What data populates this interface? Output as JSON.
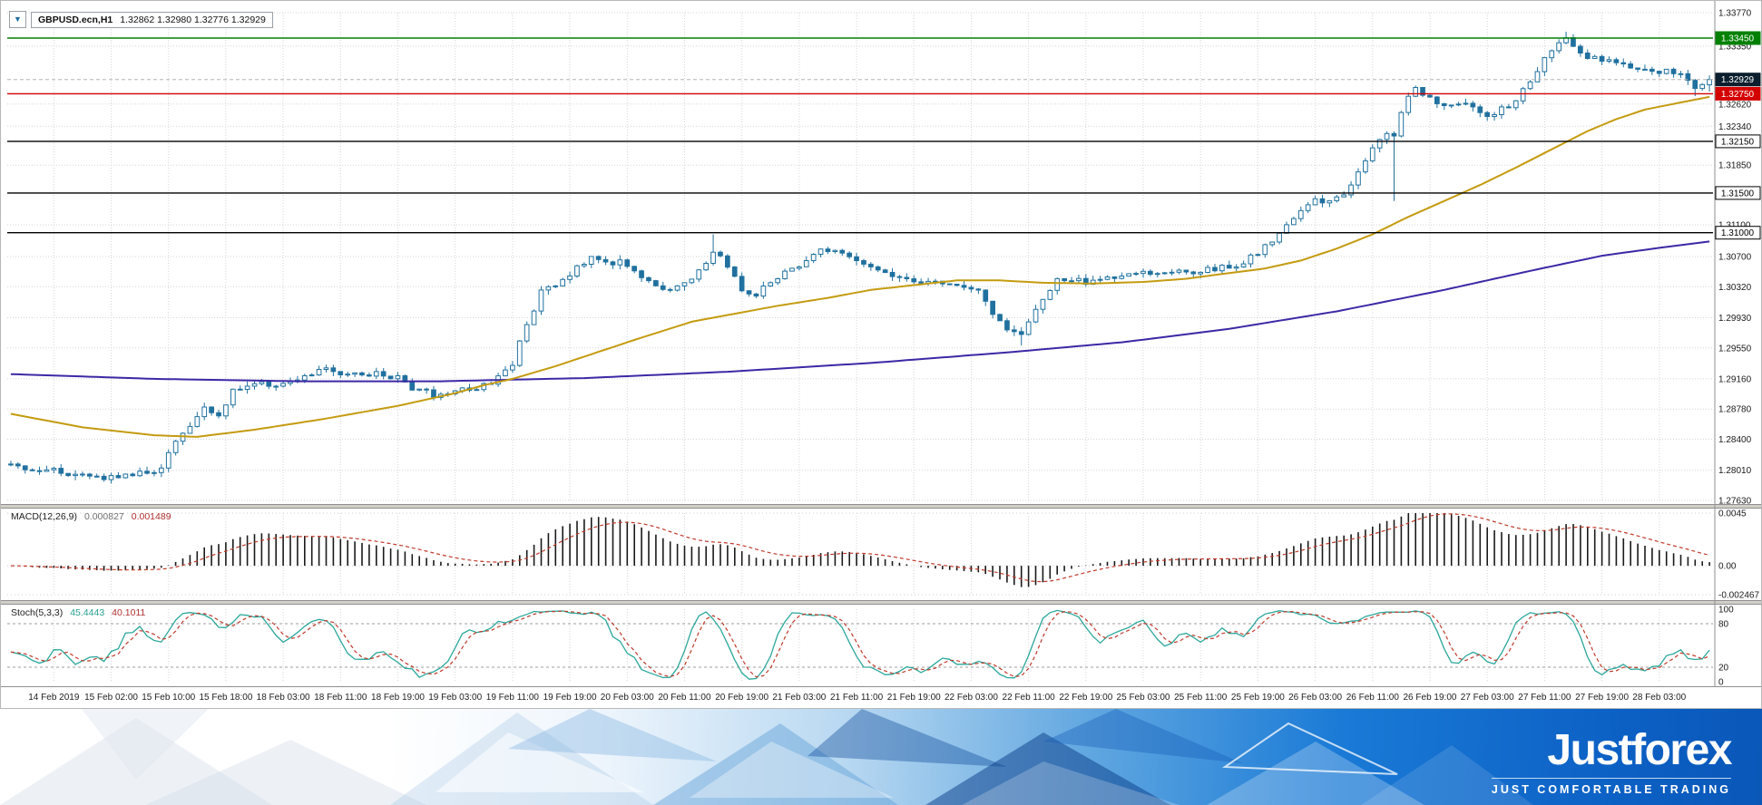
{
  "window": {
    "symbol_title": "GBPUSD.ecn,H1",
    "ohlc_text": "1.32862 1.32980 1.32776 1.32929",
    "dropdown_icon": "▼"
  },
  "chart_data": {
    "type": "candlestick",
    "symbol": "GBPUSD.ecn",
    "timeframe": "H1",
    "open": "1.32862",
    "high": "1.32980",
    "low": "1.32776",
    "close": "1.32929",
    "colors": {
      "candle": "#20719f",
      "bull_fill": "#ffffff",
      "bear_fill": "#20719f",
      "ma_fast": "#c49b10",
      "ma_slow": "#3d28a5",
      "grid": "#d6d6d6",
      "macd_bar": "#1a1a1a",
      "macd_signal": "#c03a2b",
      "stoch_main": "#2aa79b",
      "stoch_signal": "#c03a2b",
      "line_green": "#008000",
      "line_red": "#d40000",
      "line_black": "#000000",
      "price_box_bg": "#0b1f2e"
    },
    "y_axis": {
      "range": [
        1.2763,
        1.3377
      ],
      "ticks": [
        {
          "t": "1.33770",
          "v": 1.3377
        },
        {
          "t": "1.33350",
          "v": 1.3335
        },
        {
          "t": "1.32620",
          "v": 1.3262
        },
        {
          "t": "1.32340",
          "v": 1.3234
        },
        {
          "t": "1.31850",
          "v": 1.3185
        },
        {
          "t": "1.31100",
          "v": 1.311
        },
        {
          "t": "1.30700",
          "v": 1.307
        },
        {
          "t": "1.30320",
          "v": 1.3032
        },
        {
          "t": "1.29930",
          "v": 1.2993
        },
        {
          "t": "1.29550",
          "v": 1.2955
        },
        {
          "t": "1.29160",
          "v": 1.2916
        },
        {
          "t": "1.28780",
          "v": 1.2878
        },
        {
          "t": "1.28400",
          "v": 1.284
        },
        {
          "t": "1.28010",
          "v": 1.2801
        },
        {
          "t": "1.27630",
          "v": 1.2763
        }
      ]
    },
    "x_labels": [
      "14 Feb 2019",
      "15 Feb 02:00",
      "15 Feb 10:00",
      "15 Feb 18:00",
      "18 Feb 03:00",
      "18 Feb 11:00",
      "18 Feb 19:00",
      "19 Feb 03:00",
      "19 Feb 11:00",
      "19 Feb 19:00",
      "20 Feb 03:00",
      "20 Feb 11:00",
      "20 Feb 19:00",
      "21 Feb 03:00",
      "21 Feb 11:00",
      "21 Feb 19:00",
      "22 Feb 03:00",
      "22 Feb 11:00",
      "22 Feb 19:00",
      "25 Feb 03:00",
      "25 Feb 11:00",
      "25 Feb 19:00",
      "26 Feb 03:00",
      "26 Feb 11:00",
      "26 Feb 19:00",
      "27 Feb 03:00",
      "27 Feb 11:00",
      "27 Feb 19:00",
      "28 Feb 03:00"
    ],
    "bars_per_gridline": 8,
    "first_gridline_index": 6,
    "candles_total": 238,
    "candle_noise": 0.0007,
    "wick_noise": 0.0006,
    "price_path": [
      [
        0,
        1.2806
      ],
      [
        7,
        1.2799
      ],
      [
        12,
        1.2792
      ],
      [
        17,
        1.2795
      ],
      [
        21,
        1.2802
      ],
      [
        23,
        1.284
      ],
      [
        27,
        1.2878
      ],
      [
        29,
        1.2868
      ],
      [
        31,
        1.29
      ],
      [
        34,
        1.2912
      ],
      [
        37,
        1.2905
      ],
      [
        40,
        1.2915
      ],
      [
        44,
        1.293
      ],
      [
        47,
        1.292
      ],
      [
        51,
        1.2922
      ],
      [
        54,
        1.2918
      ],
      [
        56,
        1.2905
      ],
      [
        59,
        1.2896
      ],
      [
        62,
        1.29
      ],
      [
        65,
        1.2906
      ],
      [
        67,
        1.2912
      ],
      [
        70,
        1.293
      ],
      [
        71,
        1.2965
      ],
      [
        73,
        1.3
      ],
      [
        74,
        1.3025
      ],
      [
        77,
        1.304
      ],
      [
        79,
        1.3055
      ],
      [
        81,
        1.3068
      ],
      [
        83,
        1.306
      ],
      [
        85,
        1.3065
      ],
      [
        88,
        1.3045
      ],
      [
        90,
        1.303
      ],
      [
        92,
        1.3028
      ],
      [
        95,
        1.304
      ],
      [
        97,
        1.306
      ],
      [
        98,
        1.3075
      ],
      [
        100,
        1.306
      ],
      [
        102,
        1.303
      ],
      [
        104,
        1.3022
      ],
      [
        106,
        1.304
      ],
      [
        108,
        1.305
      ],
      [
        110,
        1.306
      ],
      [
        112,
        1.3075
      ],
      [
        115,
        1.308
      ],
      [
        117,
        1.307
      ],
      [
        119,
        1.306
      ],
      [
        121,
        1.3055
      ],
      [
        123,
        1.3048
      ],
      [
        126,
        1.304
      ],
      [
        128,
        1.3038
      ],
      [
        130,
        1.3035
      ],
      [
        133,
        1.303
      ],
      [
        135,
        1.3025
      ],
      [
        137,
        1.3
      ],
      [
        139,
        1.298
      ],
      [
        141,
        1.2972
      ],
      [
        142,
        1.299
      ],
      [
        144,
        1.3015
      ],
      [
        146,
        1.304
      ],
      [
        148,
        1.3042
      ],
      [
        150,
        1.3038
      ],
      [
        152,
        1.3042
      ],
      [
        155,
        1.3045
      ],
      [
        157,
        1.3048
      ],
      [
        159,
        1.305
      ],
      [
        162,
        1.3052
      ],
      [
        164,
        1.3048
      ],
      [
        166,
        1.3052
      ],
      [
        168,
        1.3055
      ],
      [
        170,
        1.3058
      ],
      [
        172,
        1.3062
      ],
      [
        174,
        1.3075
      ],
      [
        176,
        1.309
      ],
      [
        178,
        1.311
      ],
      [
        180,
        1.3128
      ],
      [
        182,
        1.314
      ],
      [
        184,
        1.3138
      ],
      [
        186,
        1.315
      ],
      [
        188,
        1.3175
      ],
      [
        190,
        1.3205
      ],
      [
        192,
        1.3228
      ],
      [
        193,
        1.3222
      ],
      [
        194,
        1.3252
      ],
      [
        195,
        1.327
      ],
      [
        196,
        1.328
      ],
      [
        198,
        1.3268
      ],
      [
        200,
        1.3258
      ],
      [
        202,
        1.3263
      ],
      [
        204,
        1.3257
      ],
      [
        206,
        1.3249
      ],
      [
        208,
        1.3255
      ],
      [
        210,
        1.3266
      ],
      [
        212,
        1.3292
      ],
      [
        214,
        1.3318
      ],
      [
        216,
        1.3338
      ],
      [
        217,
        1.3345
      ],
      [
        218,
        1.3332
      ],
      [
        220,
        1.332
      ],
      [
        222,
        1.3318
      ],
      [
        224,
        1.3312
      ],
      [
        226,
        1.3308
      ],
      [
        228,
        1.3305
      ],
      [
        231,
        1.3303
      ],
      [
        233,
        1.3297
      ],
      [
        235,
        1.3282
      ],
      [
        236,
        1.3286
      ],
      [
        237,
        1.32929
      ]
    ],
    "spikes": [
      {
        "i": 98,
        "high": 1.3098
      },
      {
        "i": 141,
        "low": 1.2958
      },
      {
        "i": 193,
        "low": 1.314
      },
      {
        "i": 217,
        "high": 1.3353
      },
      {
        "i": 235,
        "low": 1.3272
      }
    ],
    "last_candle": {
      "o": 1.32862,
      "h": 1.3298,
      "l": 1.32776,
      "c": 1.32929
    },
    "hlines": [
      {
        "v": 1.3345,
        "label": "1.33450",
        "color": "#008000",
        "bg": "#008000",
        "text": "#ffffff"
      },
      {
        "v": 1.3275,
        "label": "1.32750",
        "color": "#d40000",
        "bg": "#d40000",
        "text": "#ffffff"
      },
      {
        "v": 1.3215,
        "label": "1.32150",
        "color": "#000000",
        "bg": "#ffffff",
        "text": "#000000"
      },
      {
        "v": 1.315,
        "label": "1.31500",
        "color": "#000000",
        "bg": "#ffffff",
        "text": "#000000"
      },
      {
        "v": 1.31,
        "label": "1.31000",
        "color": "#000000",
        "bg": "#ffffff",
        "text": "#000000"
      }
    ],
    "current_price": {
      "v": 1.32929,
      "label": "1.32929"
    },
    "ma_fast": [
      [
        0,
        1.2872
      ],
      [
        10,
        1.2855
      ],
      [
        20,
        1.2845
      ],
      [
        26,
        1.2843
      ],
      [
        34,
        1.2852
      ],
      [
        44,
        1.2866
      ],
      [
        54,
        1.2882
      ],
      [
        62,
        1.2898
      ],
      [
        66,
        1.2908
      ],
      [
        70,
        1.2916
      ],
      [
        76,
        1.2932
      ],
      [
        82,
        1.295
      ],
      [
        88,
        1.2968
      ],
      [
        95,
        1.2988
      ],
      [
        101,
        1.2998
      ],
      [
        107,
        1.3008
      ],
      [
        114,
        1.3018
      ],
      [
        120,
        1.3028
      ],
      [
        126,
        1.3034
      ],
      [
        132,
        1.304
      ],
      [
        138,
        1.304
      ],
      [
        144,
        1.3037
      ],
      [
        151,
        1.3036
      ],
      [
        158,
        1.3038
      ],
      [
        164,
        1.3042
      ],
      [
        169,
        1.3048
      ],
      [
        175,
        1.3055
      ],
      [
        180,
        1.3065
      ],
      [
        185,
        1.308
      ],
      [
        190,
        1.3098
      ],
      [
        195,
        1.312
      ],
      [
        200,
        1.314
      ],
      [
        205,
        1.316
      ],
      [
        210,
        1.3182
      ],
      [
        215,
        1.3205
      ],
      [
        220,
        1.3228
      ],
      [
        224,
        1.3243
      ],
      [
        228,
        1.3255
      ],
      [
        233,
        1.3264
      ],
      [
        237,
        1.3271
      ]
    ],
    "ma_slow": [
      [
        0,
        1.2922
      ],
      [
        20,
        1.2916
      ],
      [
        40,
        1.2913
      ],
      [
        60,
        1.2913
      ],
      [
        80,
        1.2917
      ],
      [
        100,
        1.2925
      ],
      [
        120,
        1.2936
      ],
      [
        140,
        1.295
      ],
      [
        155,
        1.2962
      ],
      [
        170,
        1.2979
      ],
      [
        185,
        1.3001
      ],
      [
        200,
        1.3028
      ],
      [
        212,
        1.3052
      ],
      [
        222,
        1.3071
      ],
      [
        230,
        1.3081
      ],
      [
        237,
        1.3089
      ]
    ],
    "indicators": [
      {
        "name": "MACD(12,26,9)",
        "v1": "0.000827",
        "v2": "0.001489",
        "params": {
          "fast": 12,
          "slow": 26,
          "signal": 9
        },
        "range": [
          -0.002467,
          0.0045
        ],
        "axis": [
          {
            "t": "0.0045",
            "v": 0.0045
          },
          {
            "t": "0.00",
            "v": 0
          },
          {
            "t": "-0.002467",
            "v": -0.002467
          }
        ]
      },
      {
        "name": "Stoch(5,3,3)",
        "v1": "45.4443",
        "v2": "40.1011",
        "params": {
          "k": 5,
          "slowing": 3,
          "d": 3
        },
        "range": [
          0,
          100
        ],
        "levels": [
          80,
          20
        ],
        "axis": [
          {
            "t": "100",
            "v": 100
          },
          {
            "t": "80",
            "v": 80
          },
          {
            "t": "20",
            "v": 20
          },
          {
            "t": "0",
            "v": 0
          }
        ]
      }
    ]
  },
  "branding": {
    "logo": "Justforex",
    "tagline": "JUST COMFORTABLE TRADING",
    "blue": "#1273d4"
  }
}
